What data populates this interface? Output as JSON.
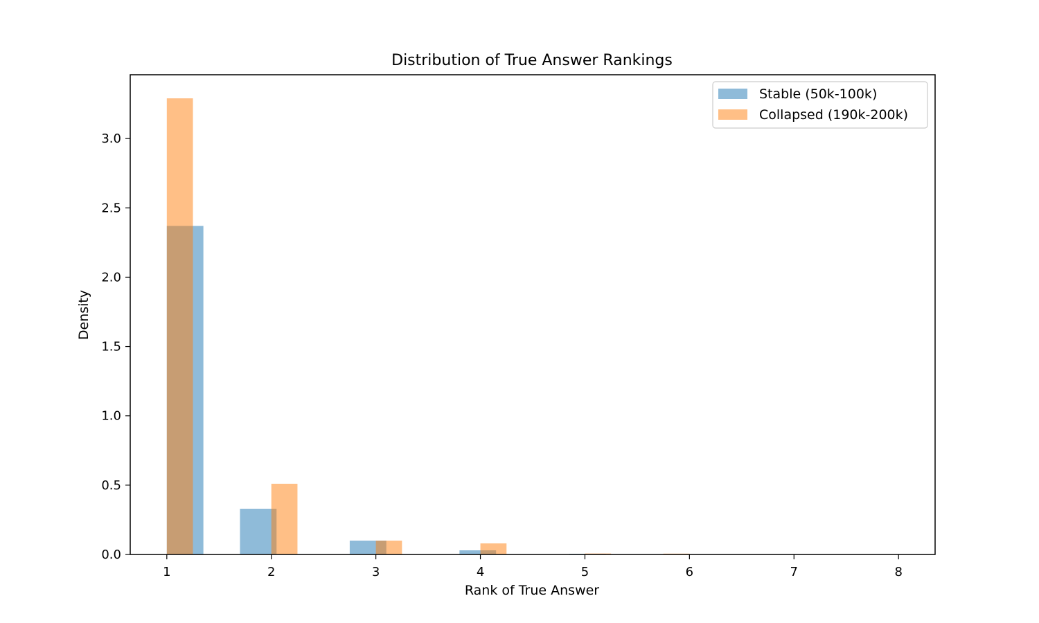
{
  "chart_data": {
    "type": "bar",
    "title": "Distribution of True Answer Rankings",
    "xlabel": "Rank of True Answer",
    "ylabel": "Density",
    "xlim": [
      0.65,
      8.35
    ],
    "ylim": [
      0,
      3.46
    ],
    "xticks": [
      1,
      2,
      3,
      4,
      5,
      6,
      7,
      8
    ],
    "yticks": [
      0.0,
      0.5,
      1.0,
      1.5,
      2.0,
      2.5,
      3.0
    ],
    "ytick_labels": [
      "0.0",
      "0.5",
      "1.0",
      "1.5",
      "2.0",
      "2.5",
      "3.0"
    ],
    "legend_position": "top-right",
    "grid": false,
    "series": [
      {
        "name": "Stable (50k-100k)",
        "color": "#1f77b4",
        "opacity": 0.5,
        "bins": [
          {
            "x0": 1.0,
            "x1": 1.35,
            "value": 2.37
          },
          {
            "x0": 1.7,
            "x1": 2.05,
            "value": 0.33
          },
          {
            "x0": 2.75,
            "x1": 3.1,
            "value": 0.1
          },
          {
            "x0": 3.8,
            "x1": 4.15,
            "value": 0.03
          },
          {
            "x0": 4.85,
            "x1": 5.2,
            "value": 0.005
          },
          {
            "x0": 5.9,
            "x1": 6.25,
            "value": 0.002
          },
          {
            "x0": 6.95,
            "x1": 7.3,
            "value": 0.001
          },
          {
            "x0": 7.65,
            "x1": 8.0,
            "value": 0.001
          }
        ]
      },
      {
        "name": "Collapsed (190k-200k)",
        "color": "#ff7f0e",
        "opacity": 0.5,
        "bins": [
          {
            "x0": 1.0,
            "x1": 1.25,
            "value": 3.29
          },
          {
            "x0": 2.0,
            "x1": 2.25,
            "value": 0.51
          },
          {
            "x0": 3.0,
            "x1": 3.25,
            "value": 0.1
          },
          {
            "x0": 4.0,
            "x1": 4.25,
            "value": 0.08
          },
          {
            "x0": 5.0,
            "x1": 5.25,
            "value": 0.007
          },
          {
            "x0": 5.75,
            "x1": 6.0,
            "value": 0.006
          },
          {
            "x0": 6.75,
            "x1": 7.0,
            "value": 0.001
          },
          {
            "x0": 7.75,
            "x1": 8.0,
            "value": 0.001
          }
        ]
      }
    ]
  }
}
